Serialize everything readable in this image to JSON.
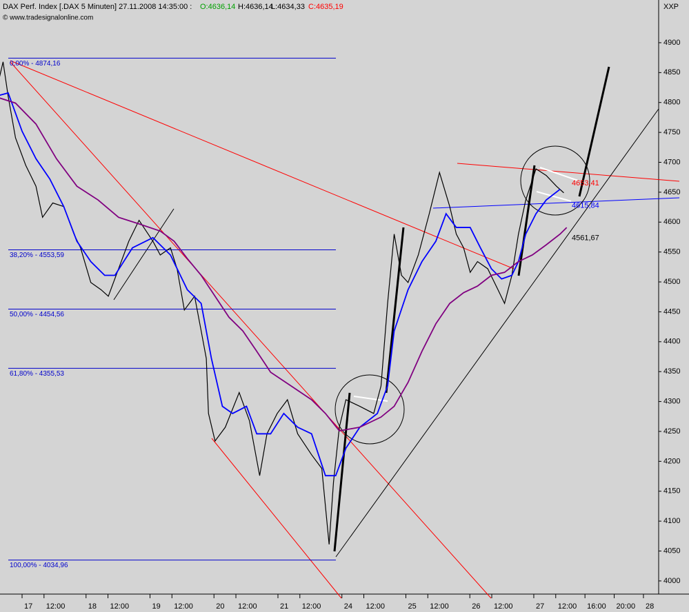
{
  "chart_data": {
    "type": "line",
    "header": {
      "symbol": "DAX Perf. Index [.DAX  5 Minuten] 27.11.2008 14:35:00 :",
      "open": "O:4636,14",
      "high": "H:4636,14",
      "low": "L:4634,33",
      "close": "C:4635,19"
    },
    "source": "© www.tradesignalonline.com",
    "axis_label": "XXP",
    "xlim": [
      -3.02,
      87.08
    ],
    "xticks": [
      {
        "value": 0,
        "label": "17"
      },
      {
        "value": 3,
        "label": "12:00"
      },
      {
        "value": 8.75,
        "label": "18"
      },
      {
        "value": 11.75,
        "label": "12:00"
      },
      {
        "value": 17.5,
        "label": "19"
      },
      {
        "value": 20.5,
        "label": "12:00"
      },
      {
        "value": 26.25,
        "label": "20"
      },
      {
        "value": 29.25,
        "label": "12:00"
      },
      {
        "value": 35,
        "label": "21"
      },
      {
        "value": 38,
        "label": "12:00"
      },
      {
        "value": 43.75,
        "label": "24"
      },
      {
        "value": 46.75,
        "label": "12:00"
      },
      {
        "value": 52.5,
        "label": "25"
      },
      {
        "value": 55.5,
        "label": "12:00"
      },
      {
        "value": 61.25,
        "label": "26"
      },
      {
        "value": 64.25,
        "label": "12:00"
      },
      {
        "value": 70,
        "label": "27"
      },
      {
        "value": 73,
        "label": "12:00"
      },
      {
        "value": 77,
        "label": "16:00"
      },
      {
        "value": 81,
        "label": "20:00"
      },
      {
        "value": 85,
        "label": "28"
      }
    ],
    "ylim": [
      3978,
      4971.4
    ],
    "yticks": [
      4000,
      4050,
      4100,
      4150,
      4200,
      4250,
      4300,
      4350,
      4400,
      4450,
      4500,
      4550,
      4600,
      4650,
      4700,
      4750,
      4800,
      4850,
      4900
    ],
    "series": [
      {
        "color": "#000000",
        "x": [
          -3.7,
          -2.6,
          -1.9,
          -0.9,
          0.5,
          1.9,
          2.8,
          4.2,
          5.7,
          7.1,
          8.0,
          9.4,
          10.8,
          11.8,
          13.2,
          14.6,
          16.0,
          17.9,
          18.9,
          20.3,
          21.2,
          22.2,
          23.6,
          24.5,
          25.2,
          25.5,
          26.4,
          27.8,
          29.7,
          31.1,
          32.5,
          33.5,
          34.9,
          36.3,
          37.7,
          39.6,
          41.0,
          42.0,
          42.6,
          43.4,
          44.3,
          46.2,
          48.1,
          49.1,
          50.0,
          50.9,
          51.9,
          52.8,
          54.2,
          55.7,
          57.1,
          58.5,
          59.4,
          60.4,
          61.3,
          62.3,
          63.7,
          65.1,
          66.0,
          67.0,
          67.9,
          68.9,
          70.3,
          71.7,
          73.1,
          74.1
        ],
        "values": [
          4810,
          4868,
          4810,
          4741,
          4695,
          4660,
          4608,
          4632,
          4626,
          4580,
          4557,
          4499,
          4487,
          4476,
          4522,
          4568,
          4603,
          4568,
          4545,
          4557,
          4522,
          4453,
          4476,
          4418,
          4372,
          4280,
          4234,
          4257,
          4315,
          4268,
          4176,
          4246,
          4280,
          4303,
          4246,
          4211,
          4188,
          4061,
          4165,
          4257,
          4303,
          4292,
          4280,
          4326,
          4464,
          4580,
          4511,
          4499,
          4545,
          4614,
          4683,
          4626,
          4580,
          4557,
          4516,
          4534,
          4522,
          4487,
          4464,
          4511,
          4580,
          4637,
          4689,
          4678,
          4660,
          4649
        ]
      },
      {
        "color": "#0000ff",
        "x": [
          -3.7,
          -1.9,
          0,
          1.9,
          3.8,
          5.7,
          7.5,
          9.4,
          11.3,
          12.7,
          15.1,
          17.9,
          20.3,
          22.6,
          24.5,
          25.9,
          27.4,
          28.8,
          30.7,
          32.1,
          34.0,
          35.8,
          37.7,
          39.6,
          41.5,
          42.9,
          44.3,
          46.2,
          48.6,
          50.0,
          50.9,
          52.8,
          54.7,
          56.6,
          58.0,
          59.4,
          61.3,
          62.7,
          64.2,
          65.6,
          67.0,
          67.9,
          68.9,
          70.3,
          71.7,
          73.6
        ],
        "values": [
          4810,
          4816,
          4752,
          4706,
          4672,
          4626,
          4568,
          4534,
          4511,
          4511,
          4557,
          4574,
          4545,
          4487,
          4464,
          4372,
          4292,
          4280,
          4292,
          4246,
          4246,
          4280,
          4257,
          4246,
          4176,
          4176,
          4222,
          4257,
          4280,
          4326,
          4418,
          4487,
          4534,
          4568,
          4614,
          4591,
          4591,
          4557,
          4522,
          4505,
          4511,
          4534,
          4580,
          4614,
          4637,
          4655
        ]
      },
      {
        "color": "#800080",
        "x": [
          -3.7,
          -0.9,
          1.9,
          4.7,
          7.5,
          10.4,
          13.2,
          16.0,
          18.9,
          20.8,
          22.6,
          24.5,
          26.4,
          28.3,
          30.2,
          32.1,
          34.0,
          36.8,
          39.6,
          41.5,
          43.4,
          46.2,
          49.1,
          50.9,
          52.8,
          54.7,
          56.6,
          58.5,
          60.4,
          62.3,
          64.2,
          66.0,
          67.9,
          69.8,
          71.7,
          73.6,
          74.5
        ],
        "values": [
          4810,
          4799,
          4764,
          4706,
          4660,
          4637,
          4608,
          4597,
          4585,
          4568,
          4539,
          4511,
          4476,
          4441,
          4418,
          4384,
          4349,
          4326,
          4303,
          4280,
          4251,
          4257,
          4274,
          4292,
          4332,
          4384,
          4430,
          4464,
          4482,
          4493,
          4511,
          4516,
          4534,
          4545,
          4562,
          4580,
          4591
        ]
      }
    ],
    "fib_levels": [
      {
        "label": "0,00% - 4874,16",
        "value": 4874.16
      },
      {
        "label": "38,20% - 4553,59",
        "value": 4553.59
      },
      {
        "label": "50,00% - 4454,56",
        "value": 4454.56
      },
      {
        "label": "61,80% - 4355,53",
        "value": 4355.53
      },
      {
        "label": "100,00% - 4034,96",
        "value": 4034.96
      }
    ],
    "price_labels": [
      {
        "label": "4653,41",
        "value": 4653.41,
        "color": "#ff0000"
      },
      {
        "label": "4615,84",
        "value": 4615.84,
        "color": "#0000ff"
      },
      {
        "label": "4561,67",
        "value": 4561.67,
        "color": "#000000"
      }
    ]
  }
}
